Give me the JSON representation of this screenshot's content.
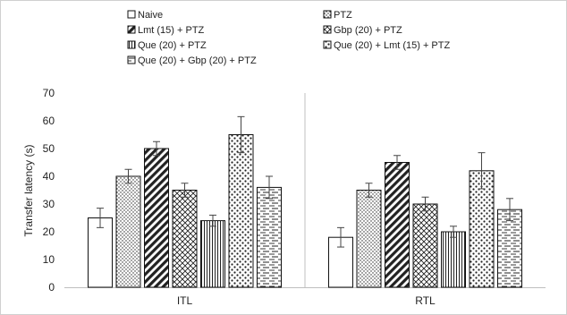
{
  "chart_data": {
    "type": "bar",
    "title": "",
    "xlabel": "",
    "ylabel": "Transfer latency (s)",
    "ylim": [
      0,
      70
    ],
    "yticks": [
      0,
      10,
      20,
      30,
      40,
      50,
      60,
      70
    ],
    "grid": false,
    "legend_position": "top",
    "categories": [
      "ITL",
      "RTL"
    ],
    "series": [
      {
        "name": "Naive",
        "values": [
          25,
          18
        ],
        "errors": [
          3.5,
          3.5
        ],
        "pattern": "blank"
      },
      {
        "name": "PTZ",
        "values": [
          40,
          35
        ],
        "errors": [
          2.5,
          2.5
        ],
        "pattern": "dots-dense"
      },
      {
        "name": "Lmt (15) + PTZ",
        "values": [
          50,
          45
        ],
        "errors": [
          2.5,
          2.5
        ],
        "pattern": "diagonal-bold"
      },
      {
        "name": "Gbp (20) + PTZ",
        "values": [
          35,
          30
        ],
        "errors": [
          2.5,
          2.5
        ],
        "pattern": "crosshatch"
      },
      {
        "name": "Que (20) + PTZ",
        "values": [
          24,
          20
        ],
        "errors": [
          2,
          2
        ],
        "pattern": "vertical-lines"
      },
      {
        "name": "Que (20) + Lmt (15) + PTZ",
        "values": [
          55,
          42
        ],
        "errors": [
          6.5,
          6.5
        ],
        "pattern": "dots-large"
      },
      {
        "name": "Que (20) + Gbp (20) + PTZ",
        "values": [
          36,
          28
        ],
        "errors": [
          4,
          4
        ],
        "pattern": "dashes"
      }
    ]
  }
}
